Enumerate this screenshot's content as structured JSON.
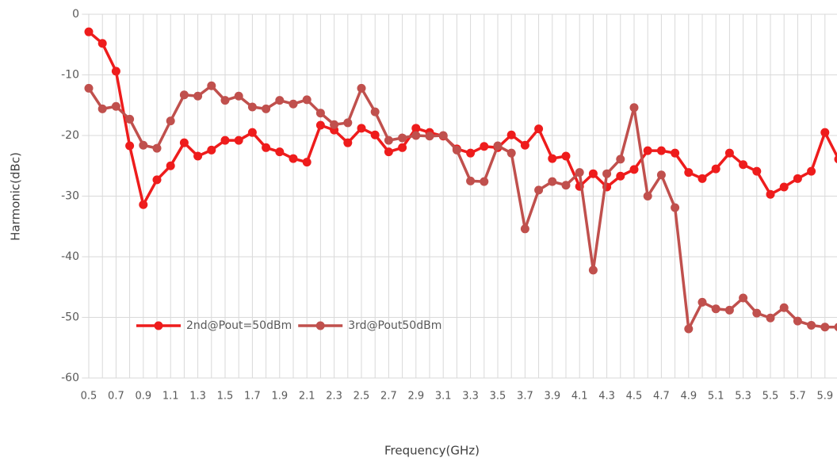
{
  "chart_data": {
    "type": "line",
    "x_label": "Frequency(GHz)",
    "y_label": "Harmonic(dBc)",
    "categories": [
      "0.5",
      null,
      "0.7",
      null,
      "0.9",
      null,
      "1.1",
      null,
      "1.3",
      null,
      "1.5",
      null,
      "1.7",
      null,
      "1.9",
      null,
      "2.1",
      null,
      "2.3",
      null,
      "2.5",
      null,
      "2.7",
      null,
      "2.9",
      null,
      "3.1",
      null,
      "3.3",
      null,
      "3.5",
      null,
      "3.7",
      null,
      "3.9",
      null,
      "4.1",
      null,
      "4.3",
      null,
      "4.5",
      null,
      "4.7",
      null,
      "4.9",
      null,
      "5.1",
      null,
      "5.3",
      null,
      "5.5",
      null,
      "5.7",
      null,
      "5.9",
      null
    ],
    "series": [
      {
        "name": "2nd@Pout=50dBm",
        "color": "#ee1c1c",
        "values": [
          -2.9,
          -4.8,
          -9.4,
          -21.7,
          -31.4,
          -27.3,
          -25,
          -21.2,
          -23.4,
          -22.4,
          -20.8,
          -20.8,
          -19.5,
          -22,
          -22.7,
          -23.8,
          -24.4,
          -18.3,
          -19.1,
          -21.2,
          -18.8,
          -19.9,
          -22.7,
          -22,
          -18.8,
          -19.5,
          -20.1,
          -22.2,
          -22.9,
          -21.8,
          -22,
          -19.9,
          -21.6,
          -18.9,
          -23.8,
          -23.4,
          -28.4,
          -26.3,
          -28.5,
          -26.7,
          -25.6,
          -22.5,
          -22.5,
          -22.9,
          -26.1,
          -27.1,
          -25.5,
          -22.9,
          -24.8,
          -25.9,
          -29.7,
          -28.5,
          -27.1,
          -25.9,
          -19.5,
          -23.9
        ]
      },
      {
        "name": "3rd@Pout50dBm",
        "color": "#c0504d",
        "values": [
          -12.2,
          -15.6,
          -15.2,
          -17.3,
          -21.6,
          -22.1,
          -17.6,
          -13.3,
          -13.5,
          -11.8,
          -14.2,
          -13.5,
          -15.3,
          -15.6,
          -14.2,
          -14.8,
          -14.1,
          -16.3,
          -18.2,
          -17.9,
          -12.2,
          -16.1,
          -20.8,
          -20.4,
          -20,
          -20.1,
          -20,
          -22.4,
          -27.5,
          -27.6,
          -21.7,
          -22.9,
          -35.4,
          -29,
          -27.6,
          -28.2,
          -26.1,
          -42.2,
          -26.3,
          -23.9,
          -15.4,
          -30,
          -26.5,
          -31.9,
          -51.9,
          -47.5,
          -48.6,
          -48.8,
          -46.8,
          -49.3,
          -50.1,
          -48.4,
          -50.6,
          -51.3,
          -51.6,
          -51.6
        ]
      }
    ],
    "ylim": [
      -60,
      0
    ],
    "yticks": [
      -60,
      -50,
      -40,
      -30,
      -20,
      -10,
      0
    ],
    "grid": true,
    "legend": "lower left"
  }
}
